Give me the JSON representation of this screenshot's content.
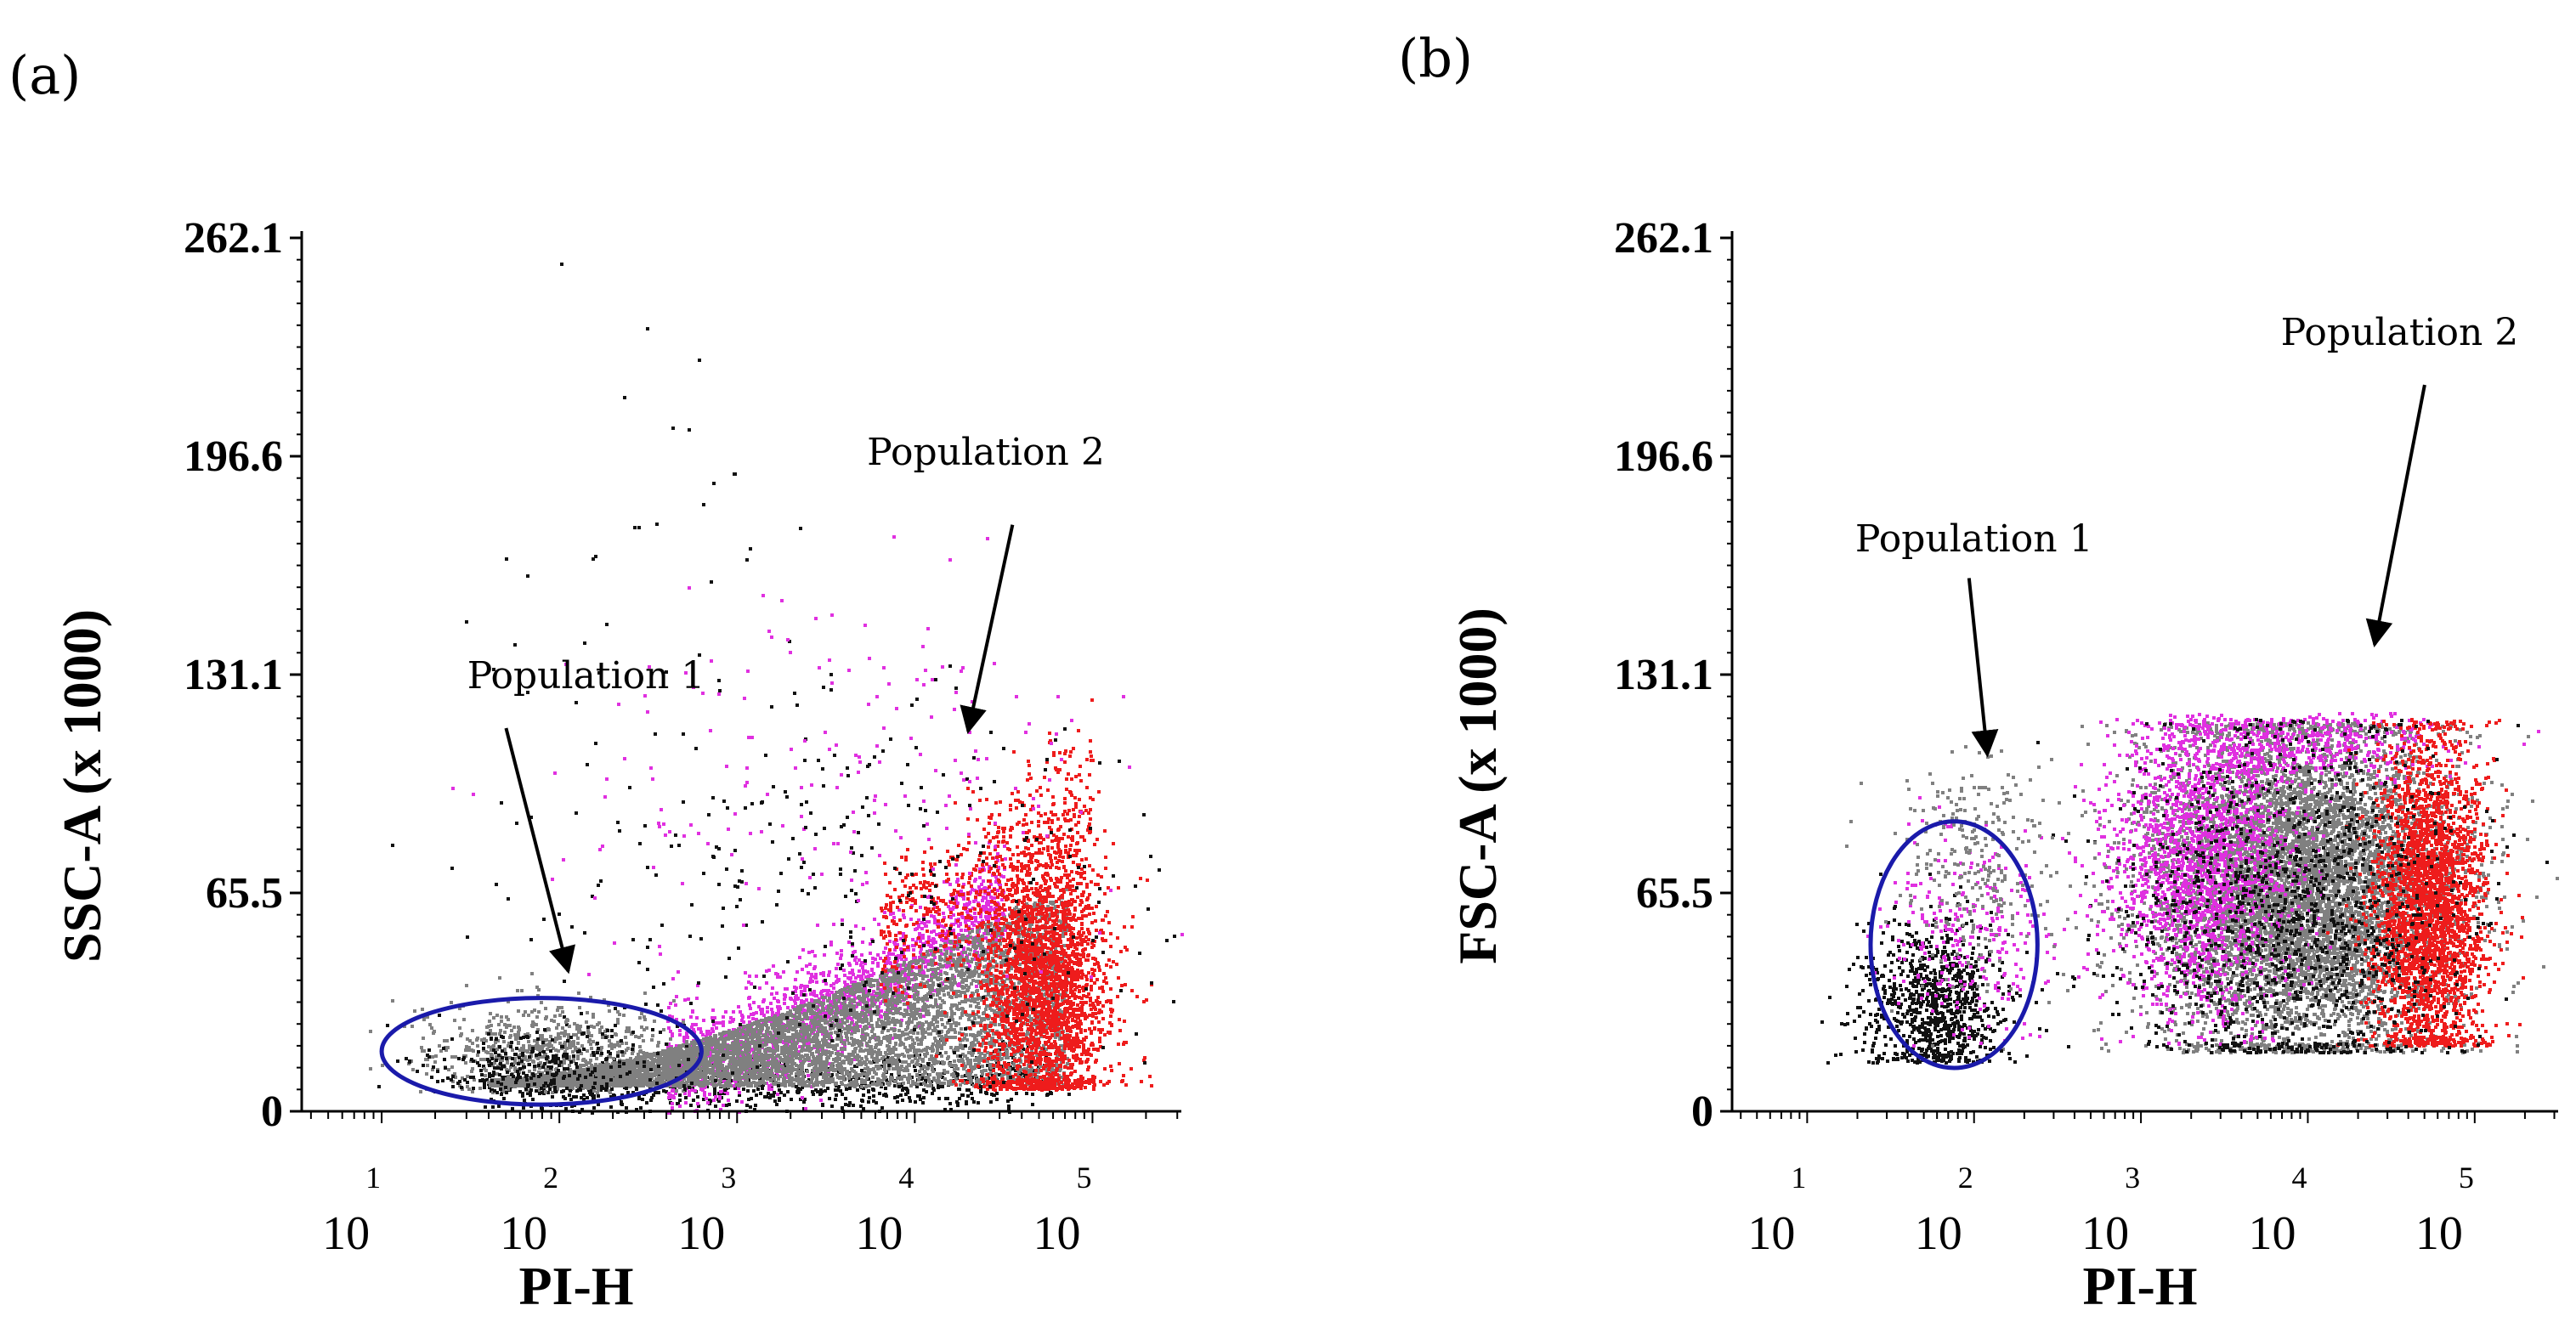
{
  "chart_data": [
    {
      "type": "scatter",
      "panel_label": "(a)",
      "xlabel": "PI-H",
      "ylabel": "SSC-A (x 1000)",
      "x_scale": "log10",
      "xlim": [
        0.55,
        5.5
      ],
      "x_ticks": [
        {
          "base": "10",
          "power": "1",
          "value": 1
        },
        {
          "base": "10",
          "power": "2",
          "value": 2
        },
        {
          "base": "10",
          "power": "3",
          "value": 3
        },
        {
          "base": "10",
          "power": "4",
          "value": 4
        },
        {
          "base": "10",
          "power": "5",
          "value": 5
        }
      ],
      "ylim": [
        0,
        262.1
      ],
      "y_ticks": [
        "0",
        "65.5",
        "131.1",
        "196.6",
        "262.1"
      ],
      "y_tick_values": [
        0,
        65.5,
        131.1,
        196.6,
        262.1
      ],
      "colors": {
        "gray": "#808080",
        "magenta": "#e030e0",
        "red": "#ee1c1c",
        "black": "#111111",
        "circle": "#1a1aaa"
      },
      "clusters": [
        {
          "name": "black-base",
          "shape": "arc",
          "color": "black",
          "n": 750,
          "x_from": 1.55,
          "x_to": 4.75,
          "y_at_from": 7,
          "y_rise": 5,
          "power": 4,
          "y_spread": 5
        },
        {
          "name": "magenta-band",
          "shape": "arc",
          "color": "magenta",
          "n": 1700,
          "x_from": 2.6,
          "x_to": 4.5,
          "y_at_from": 15,
          "y_rise": 50,
          "power": 1.5,
          "y_spread": 8
        },
        {
          "name": "gray-core",
          "shape": "fill",
          "color": "gray",
          "n": 6500,
          "x_from": 1.6,
          "x_to": 4.85,
          "y_base": 8,
          "y_at_from": 10,
          "y_rise": 60,
          "power": 1.6
        },
        {
          "name": "red-tail",
          "shape": "ellipse",
          "color": "red",
          "n": 2600,
          "cx": 4.72,
          "cy": 38,
          "sx": 0.18,
          "sy": 22,
          "y_min": 7
        },
        {
          "name": "red-fringe",
          "shape": "arc",
          "color": "red",
          "n": 500,
          "x_from": 3.8,
          "x_to": 5.0,
          "y_at_from": 55,
          "y_rise": 40,
          "power": 1.3,
          "y_spread": 12
        },
        {
          "name": "black-scatter",
          "shape": "ellipse",
          "color": "black",
          "n": 350,
          "cx": 3.8,
          "cy": 60,
          "sx": 0.9,
          "sy": 35,
          "y_min": 5
        },
        {
          "name": "magenta-scatter",
          "shape": "ellipse",
          "color": "magenta",
          "n": 220,
          "cx": 3.6,
          "cy": 95,
          "sx": 0.8,
          "sy": 35,
          "y_min": 40
        },
        {
          "name": "pop1-gray",
          "shape": "ellipse",
          "color": "gray",
          "n": 700,
          "cx": 1.95,
          "cy": 18,
          "sx": 0.35,
          "sy": 7,
          "y_min": 6
        },
        {
          "name": "pop1-black",
          "shape": "ellipse",
          "color": "black",
          "n": 280,
          "cx": 1.9,
          "cy": 14,
          "sx": 0.35,
          "sy": 6,
          "y_min": 6
        },
        {
          "name": "outliers",
          "shape": "ellipse",
          "color": "black",
          "n": 60,
          "cx": 2.5,
          "cy": 130,
          "sx": 0.6,
          "sy": 70,
          "y_min": 30
        }
      ],
      "gate": {
        "cx": 1.9,
        "cy": 18,
        "rx": 0.9,
        "ry": 16
      },
      "annotations": [
        {
          "text": "Population 1",
          "text_x": 2.15,
          "text_y": 127,
          "arrow_from": [
            1.7,
            115
          ],
          "arrow_to": [
            2.05,
            42
          ]
        },
        {
          "text": "Population 2",
          "text_x": 4.4,
          "text_y": 194,
          "arrow_from": [
            4.55,
            176
          ],
          "arrow_to": [
            4.3,
            114
          ]
        }
      ]
    },
    {
      "type": "scatter",
      "panel_label": "(b)",
      "xlabel": "PI-H",
      "ylabel": "FSC-A (x 1000)",
      "x_scale": "log10",
      "xlim": [
        0.55,
        5.5
      ],
      "x_ticks": [
        {
          "base": "10",
          "power": "1",
          "value": 1
        },
        {
          "base": "10",
          "power": "2",
          "value": 2
        },
        {
          "base": "10",
          "power": "3",
          "value": 3
        },
        {
          "base": "10",
          "power": "4",
          "value": 4
        },
        {
          "base": "10",
          "power": "5",
          "value": 5
        }
      ],
      "ylim": [
        0,
        262.1
      ],
      "y_ticks": [
        "0",
        "65.5",
        "131.1",
        "196.6",
        "262.1"
      ],
      "y_tick_values": [
        0,
        65.5,
        131.1,
        196.6,
        262.1
      ],
      "colors": {
        "gray": "#808080",
        "magenta": "#e030e0",
        "red": "#ee1c1c",
        "black": "#111111",
        "circle": "#1a1aaa"
      },
      "clusters": [
        {
          "name": "gray-blob",
          "shape": "ellipse",
          "color": "gray",
          "n": 7000,
          "cx": 3.95,
          "cy": 68,
          "sx": 0.45,
          "sy": 25,
          "y_min": 18,
          "y_max": 117
        },
        {
          "name": "magenta-edge",
          "shape": "ellipse",
          "color": "magenta",
          "n": 1800,
          "cx": 3.35,
          "cy": 75,
          "sx": 0.28,
          "sy": 22,
          "y_min": 20,
          "y_max": 118
        },
        {
          "name": "magenta-top",
          "shape": "ellipse",
          "color": "magenta",
          "n": 500,
          "cx": 3.9,
          "cy": 110,
          "sx": 0.45,
          "sy": 5,
          "y_min": 95,
          "y_max": 120
        },
        {
          "name": "red-right",
          "shape": "ellipse",
          "color": "red",
          "n": 2800,
          "cx": 4.72,
          "cy": 62,
          "sx": 0.17,
          "sy": 25,
          "y_min": 20,
          "y_max": 118
        },
        {
          "name": "black-mix",
          "shape": "ellipse",
          "color": "black",
          "n": 1300,
          "cx": 3.9,
          "cy": 60,
          "sx": 0.5,
          "sy": 28,
          "y_min": 18,
          "y_max": 118
        },
        {
          "name": "pop1-black",
          "shape": "ellipse",
          "color": "black",
          "n": 900,
          "cx": 1.75,
          "cy": 32,
          "sx": 0.22,
          "sy": 12,
          "y_min": 15
        },
        {
          "name": "pop1-magenta",
          "shape": "ellipse",
          "color": "magenta",
          "n": 260,
          "cx": 1.95,
          "cy": 55,
          "sx": 0.25,
          "sy": 15,
          "y_min": 20
        },
        {
          "name": "pop1-gray",
          "shape": "ellipse",
          "color": "gray",
          "n": 280,
          "cx": 2.0,
          "cy": 75,
          "sx": 0.25,
          "sy": 18,
          "y_min": 20,
          "y_max": 110
        }
      ],
      "gate": {
        "cx": 1.88,
        "cy": 50,
        "rx": 0.5,
        "ry": 37
      },
      "annotations": [
        {
          "text": "Population 1",
          "text_x": 2.0,
          "text_y": 168,
          "arrow_from": [
            1.97,
            160
          ],
          "arrow_to": [
            2.08,
            107
          ]
        },
        {
          "text": "Population 2",
          "text_x": 4.55,
          "text_y": 230,
          "arrow_from": [
            4.7,
            218
          ],
          "arrow_to": [
            4.4,
            140
          ]
        }
      ]
    }
  ]
}
